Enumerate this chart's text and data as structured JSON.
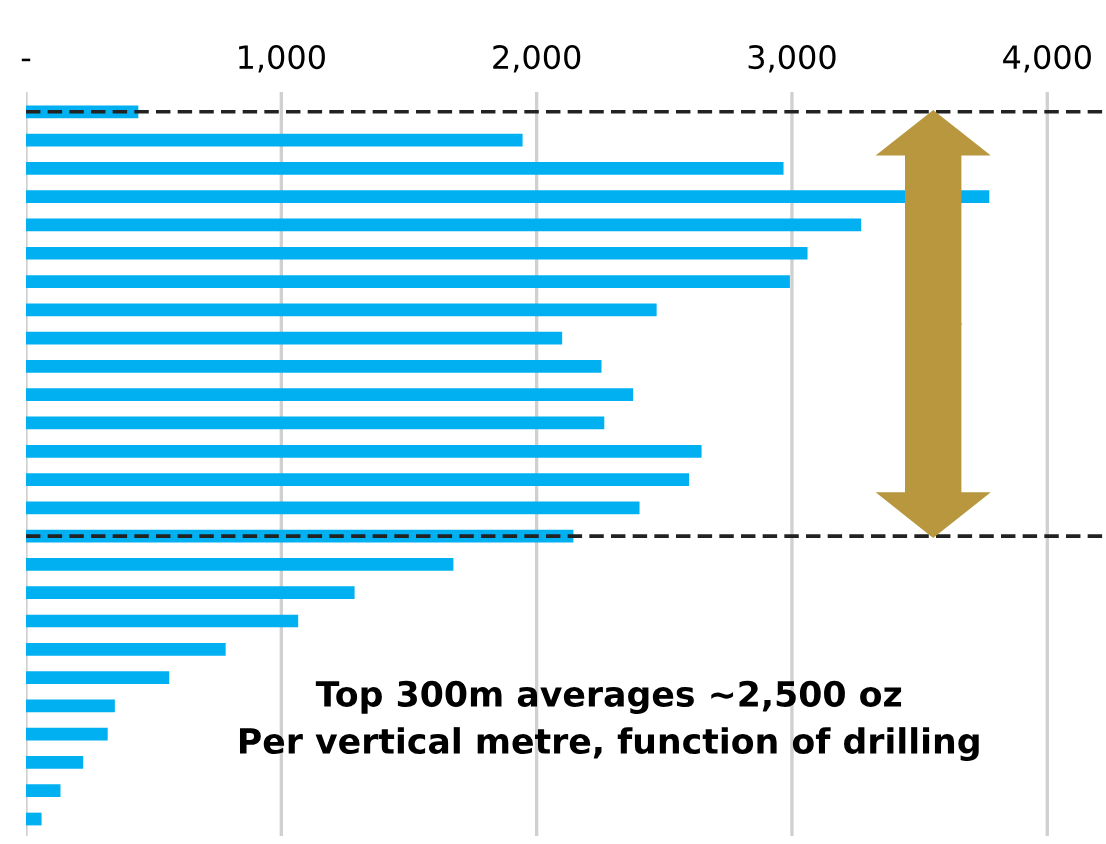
{
  "chart_data": {
    "type": "bar",
    "orientation": "horizontal",
    "categories": [
      null,
      null,
      null,
      null,
      null,
      null,
      null,
      null,
      null,
      null,
      null,
      null,
      null,
      null,
      null,
      null,
      null,
      null,
      null,
      null,
      null,
      null,
      null,
      null,
      null,
      null
    ],
    "values": [
      440,
      1945,
      2967,
      3773,
      3271,
      3061,
      2992,
      2470,
      2100,
      2254,
      2378,
      2265,
      2646,
      2597,
      2403,
      2144,
      1674,
      1287,
      1066,
      782,
      561,
      348,
      320,
      224,
      135,
      61
    ],
    "color": "#00b0f0",
    "xlim": [
      0,
      4230
    ],
    "xticks": [
      {
        "value": 0,
        "label": "-"
      },
      {
        "value": 1000,
        "label": "1,000"
      },
      {
        "value": 2000,
        "label": "2,000"
      },
      {
        "value": 3000,
        "label": "3,000"
      },
      {
        "value": 4000,
        "label": "4,000"
      }
    ],
    "grid": "x",
    "tick_labels": "x",
    "annotations": [
      "Top 300m averages ~2,500 oz\nPer vertical metre, function of drilling"
    ]
  }
}
